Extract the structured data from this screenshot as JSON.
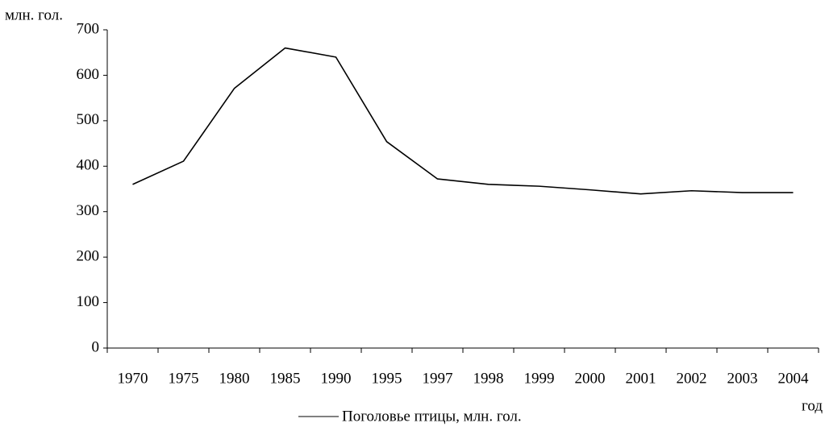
{
  "chart_data": {
    "type": "line",
    "y_label": "млн. гол.",
    "x_label": "год",
    "categories": [
      "1970",
      "1975",
      "1980",
      "1985",
      "1990",
      "1995",
      "1997",
      "1998",
      "1999",
      "2000",
      "2001",
      "2002",
      "2003",
      "2004"
    ],
    "series": [
      {
        "name": "Поголовье птицы, млн. гол.",
        "color": "#000000",
        "values": [
          360,
          411,
          571,
          660,
          640,
          454,
          372,
          360,
          356,
          348,
          339,
          346,
          342,
          342
        ]
      }
    ],
    "ylim": [
      0,
      700
    ],
    "yticks": [
      0,
      100,
      200,
      300,
      400,
      500,
      600,
      700
    ],
    "grid": false
  }
}
